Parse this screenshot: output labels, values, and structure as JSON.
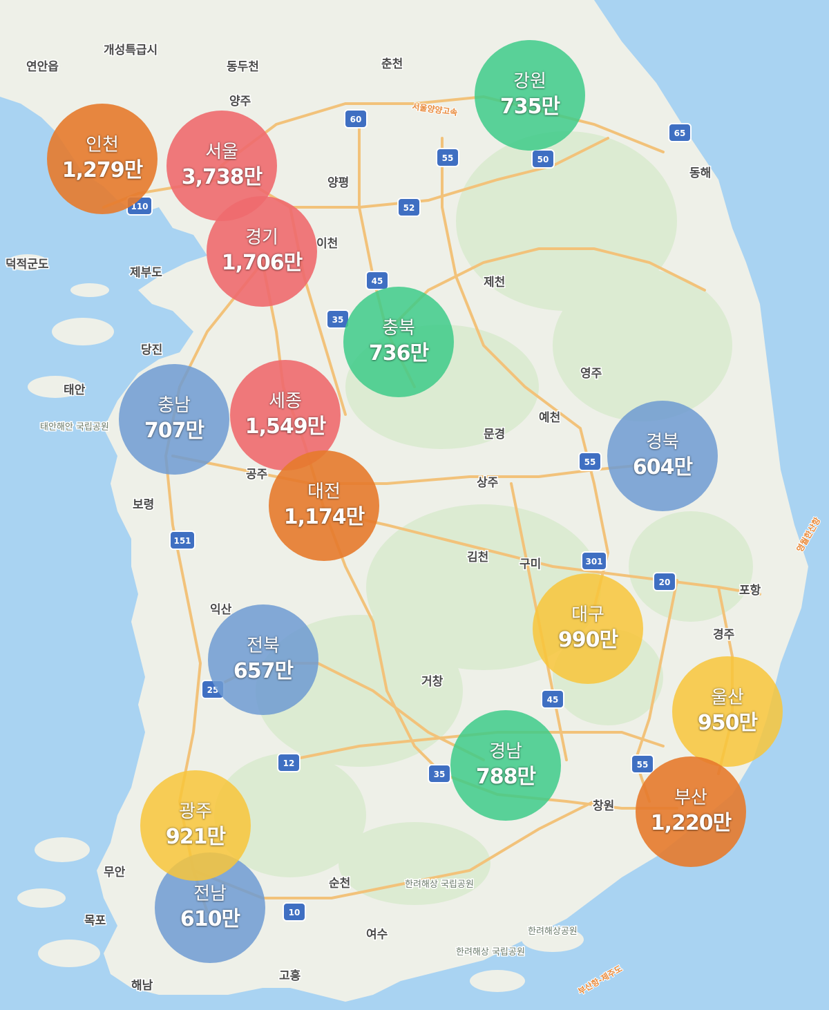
{
  "colors": {
    "sea": "#a9d3f2",
    "land": "#f3f1ea",
    "forest": "#dcebd2",
    "road": "#f2c27a",
    "shield": "#3f6fc2",
    "red": "#ee6a6e",
    "orange": "#e57a2c",
    "green": "#3ecb8a",
    "blue": "#6f9bd2",
    "yellow": "#f8c63b"
  },
  "regions": [
    {
      "name": "인천",
      "count": "1,279만",
      "color": "orange"
    },
    {
      "name": "서울",
      "count": "3,738만",
      "color": "red"
    },
    {
      "name": "경기",
      "count": "1,706만",
      "color": "red"
    },
    {
      "name": "강원",
      "count": "735만",
      "color": "green"
    },
    {
      "name": "충북",
      "count": "736만",
      "color": "green"
    },
    {
      "name": "충남",
      "count": "707만",
      "color": "blue"
    },
    {
      "name": "세종",
      "count": "1,549만",
      "color": "red"
    },
    {
      "name": "대전",
      "count": "1,174만",
      "color": "orange"
    },
    {
      "name": "경북",
      "count": "604만",
      "color": "blue"
    },
    {
      "name": "전북",
      "count": "657만",
      "color": "blue"
    },
    {
      "name": "대구",
      "count": "990만",
      "color": "yellow"
    },
    {
      "name": "울산",
      "count": "950만",
      "color": "yellow"
    },
    {
      "name": "경남",
      "count": "788만",
      "color": "green"
    },
    {
      "name": "부산",
      "count": "1,220만",
      "color": "orange"
    },
    {
      "name": "광주",
      "count": "921만",
      "color": "yellow"
    },
    {
      "name": "전남",
      "count": "610만",
      "color": "blue"
    }
  ],
  "places": [
    "개성특급시",
    "연안읍",
    "동두천",
    "춘천",
    "양주",
    "양평",
    "이천",
    "제천",
    "동해",
    "덕적군도",
    "제부도",
    "당진",
    "태안",
    "영주",
    "예천",
    "문경",
    "공주",
    "보령",
    "상주",
    "김천",
    "구미",
    "포항",
    "경주",
    "익산",
    "거창",
    "창원",
    "무안",
    "목포",
    "순천",
    "여수",
    "고흥",
    "해남"
  ],
  "small_places": [
    "태안해안\n국립공원",
    "한려해상\n국립공원",
    "한려해상공원",
    "한려해상\n국립공원"
  ],
  "road_labels": [
    "서울양양고속",
    "부산항-제주도",
    "영월한산항"
  ],
  "shields": [
    "60",
    "55",
    "50",
    "65",
    "52",
    "45",
    "35",
    "110",
    "151",
    "25",
    "12",
    "10",
    "35",
    "45",
    "55",
    "301",
    "20",
    "25"
  ]
}
